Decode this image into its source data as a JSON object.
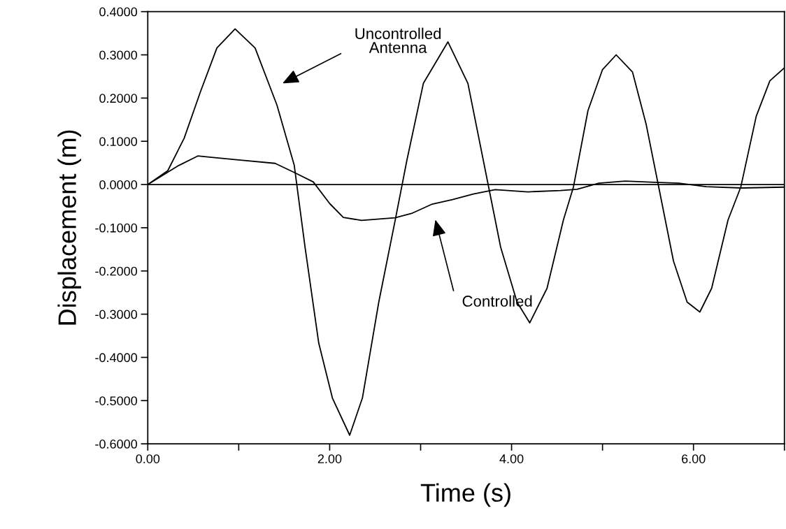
{
  "chart_data": {
    "type": "line",
    "xlabel": "Time (s)",
    "ylabel": "Displacement (m)",
    "xlim": [
      0,
      7
    ],
    "ylim": [
      -0.6,
      0.4
    ],
    "xticks": [
      {
        "value": 0,
        "label": "0.00"
      },
      {
        "value": 1,
        "label": null
      },
      {
        "value": 2,
        "label": "2.00"
      },
      {
        "value": 3,
        "label": null
      },
      {
        "value": 4,
        "label": "4.00"
      },
      {
        "value": 5,
        "label": null
      },
      {
        "value": 6,
        "label": "6.00"
      },
      {
        "value": 7,
        "label": null
      }
    ],
    "yticks": [
      {
        "value": -0.6,
        "label": "-0.6000"
      },
      {
        "value": -0.5,
        "label": "-0.5000"
      },
      {
        "value": -0.4,
        "label": "-0.4000"
      },
      {
        "value": -0.3,
        "label": "-0.3000"
      },
      {
        "value": -0.2,
        "label": "-0.2000"
      },
      {
        "value": -0.1,
        "label": "-0.1000"
      },
      {
        "value": 0,
        "label": "0.0000"
      },
      {
        "value": 0.1,
        "label": "0.1000"
      },
      {
        "value": 0.2,
        "label": "0.2000"
      },
      {
        "value": 0.3,
        "label": "0.3000"
      },
      {
        "value": 0.4,
        "label": "0.4000"
      }
    ],
    "grid": false,
    "legend": false,
    "marker": "none",
    "line_style": "solid",
    "ref_lines": [
      {
        "axis": "y",
        "value": 0,
        "color": "#000000"
      }
    ],
    "annotations": [
      "Uncontrolled\nAntenna",
      "Controlled"
    ],
    "series": [
      {
        "color": "#000000",
        "x": [
          0,
          0.22,
          0.4,
          0.58,
          0.76,
          0.96,
          1.18,
          1.42,
          1.61,
          1.73,
          1.88,
          2.03,
          2.22,
          2.36,
          2.54,
          2.72,
          2.85,
          3.03,
          3.3,
          3.52,
          3.73,
          3.88,
          4.06,
          4.2,
          4.39,
          4.57,
          4.68,
          4.84,
          5.0,
          5.15,
          5.33,
          5.48,
          5.6,
          5.78,
          5.93,
          6.07,
          6.2,
          6.38,
          6.52,
          6.69,
          6.84,
          7.0
        ],
        "values": [
          0,
          0.032,
          0.107,
          0.215,
          0.316,
          0.36,
          0.316,
          0.184,
          0.045,
          -0.146,
          -0.367,
          -0.494,
          -0.58,
          -0.494,
          -0.272,
          -0.083,
          0.057,
          0.234,
          0.33,
          0.234,
          0.013,
          -0.145,
          -0.272,
          -0.32,
          -0.24,
          -0.082,
          -0.006,
          0.171,
          0.266,
          0.3,
          0.26,
          0.139,
          0.013,
          -0.177,
          -0.272,
          -0.295,
          -0.24,
          -0.082,
          -0.006,
          0.158,
          0.24,
          0.27
        ]
      },
      {
        "color": "#000000",
        "x": [
          0,
          0.34,
          0.55,
          0.7,
          1.0,
          1.4,
          1.61,
          1.82,
          2.0,
          2.15,
          2.35,
          2.72,
          2.9,
          3.12,
          3.35,
          3.58,
          3.82,
          4.18,
          4.54,
          4.72,
          4.96,
          5.25,
          5.57,
          5.84,
          6.14,
          6.53,
          7.0
        ],
        "values": [
          0,
          0.044,
          0.066,
          0.063,
          0.057,
          0.049,
          0.028,
          0.006,
          -0.044,
          -0.076,
          -0.083,
          -0.077,
          -0.067,
          -0.046,
          -0.035,
          -0.022,
          -0.012,
          -0.017,
          -0.014,
          -0.011,
          0.003,
          0.008,
          0.005,
          0.003,
          -0.005,
          -0.008,
          -0.006
        ]
      }
    ]
  }
}
